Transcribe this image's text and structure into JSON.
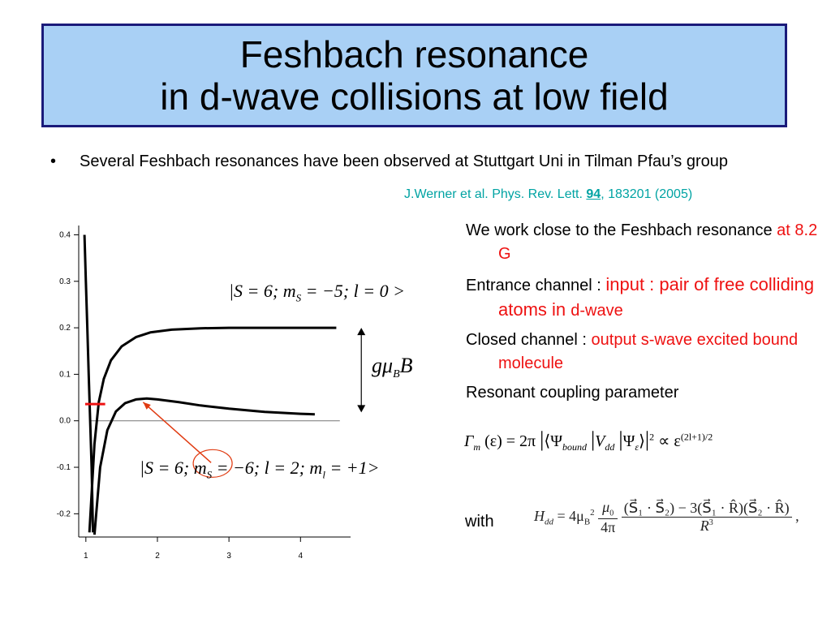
{
  "title": {
    "line1": "Feshbach resonance",
    "line2": "in d-wave collisions at low field"
  },
  "bullet": {
    "dot": "•",
    "text": "Several Feshbach resonances have been observed  at Stuttgart Uni  in Tilman Pfau’s group"
  },
  "reference": {
    "prefix": "J.Werner et al. Phys. Rev. Lett. ",
    "volume": "94",
    "suffix": ", 183201 (2005)"
  },
  "right": {
    "p1": {
      "text": "We work close to the Feshbach resonance ",
      "highlight": "at 8.2 G"
    },
    "p2": {
      "label": "Entrance channel : ",
      "highlight1": "input : pair of free colliding atoms in ",
      "highlight2": "d-wave"
    },
    "p3": {
      "label": "Closed channel : ",
      "highlight": "output s-wave excited bound molecule"
    },
    "p4": {
      "text": "Resonant coupling parameter"
    },
    "with": "with"
  },
  "formulas": {
    "gamma": {
      "lhs": "Γ",
      "lhs_sub": "m",
      "arg": "(ε) = 2π",
      "bra": "⟨Ψ",
      "bound_sub": "bound",
      "v": "V",
      "v_sub": "dd",
      "psi": "Ψ",
      "psi_sub": "ε",
      "ket": "⟩",
      "sq": "2",
      "prop": "∝ ε",
      "exp": "(2l+1)/2"
    },
    "hdd": {
      "lhs": "H",
      "lhs_sub": "dd",
      "eq": " = 4μ",
      "mu_sub": "B",
      "mu_sup": "2",
      "f1_num": "μ",
      "f1_num_sub": "0",
      "f1_den": "4π",
      "f2_num": "(S⃗₁ · S⃗₂) − 3(S⃗₁ · R̂)(S⃗₂ · R̂)",
      "f2_den": "R",
      "f2_den_sup": "3",
      "tail": ","
    }
  },
  "plot_labels": {
    "state_top": "|S = 6; m",
    "state_top_sub": "S",
    "state_top_rest": " = −5; l = 0 >",
    "state_bottom": "|S = 6; m",
    "state_bottom_sub": "S",
    "state_bottom_mid": " = −6; l = 2; m",
    "state_bottom_sub2": "l",
    "state_bottom_rest": " = +1>",
    "gap_g": "gμ",
    "gap_sub": "B",
    "gap_B": "B"
  },
  "chart_data": {
    "type": "line",
    "title": "",
    "xlabel": "",
    "ylabel": "",
    "xlim": [
      0.9,
      4.7
    ],
    "ylim": [
      -0.25,
      0.42
    ],
    "x_ticks": [
      "1",
      "2",
      "3",
      "4"
    ],
    "y_ticks": [
      "0.4",
      "0.3",
      "0.2",
      "0.1",
      "0.0",
      "-0.1",
      "-0.2"
    ],
    "series": [
      {
        "color": "#000000",
        "x": [
          1.05,
          1.12,
          1.18,
          1.25,
          1.35,
          1.5,
          1.7,
          1.9,
          2.2,
          2.6,
          3.0,
          3.5,
          4.0,
          4.5
        ],
        "y": [
          -0.24,
          -0.05,
          0.04,
          0.09,
          0.13,
          0.16,
          0.18,
          0.19,
          0.196,
          0.199,
          0.2,
          0.2,
          0.2,
          0.2
        ]
      },
      {
        "color": "#000000",
        "x": [
          1.12,
          1.2,
          1.3,
          1.42,
          1.55,
          1.7,
          1.85,
          2.0,
          2.3,
          2.6,
          3.0,
          3.5,
          4.0,
          4.2
        ],
        "y": [
          -0.245,
          -0.1,
          -0.02,
          0.02,
          0.038,
          0.046,
          0.048,
          0.046,
          0.04,
          0.033,
          0.026,
          0.019,
          0.015,
          0.014
        ]
      },
      {
        "color": "#000000",
        "x": [
          0.98,
          1.0,
          1.02,
          1.04,
          1.06,
          1.08,
          1.1
        ],
        "y": [
          0.4,
          0.3,
          0.2,
          0.1,
          0.0,
          -0.1,
          -0.24
        ]
      }
    ],
    "annotations": [
      {
        "type": "bound-level",
        "color": "#ee1111",
        "x": [
          0.99,
          1.27
        ],
        "y": 0.036
      },
      {
        "type": "arrow",
        "color": "#e03a10",
        "from": [
          2.75,
          -0.09
        ],
        "to": [
          1.8,
          0.04
        ]
      },
      {
        "type": "gap-arrow",
        "color": "#000000",
        "x": 4.85,
        "y_from": 0.018,
        "y_to": 0.2
      }
    ]
  }
}
